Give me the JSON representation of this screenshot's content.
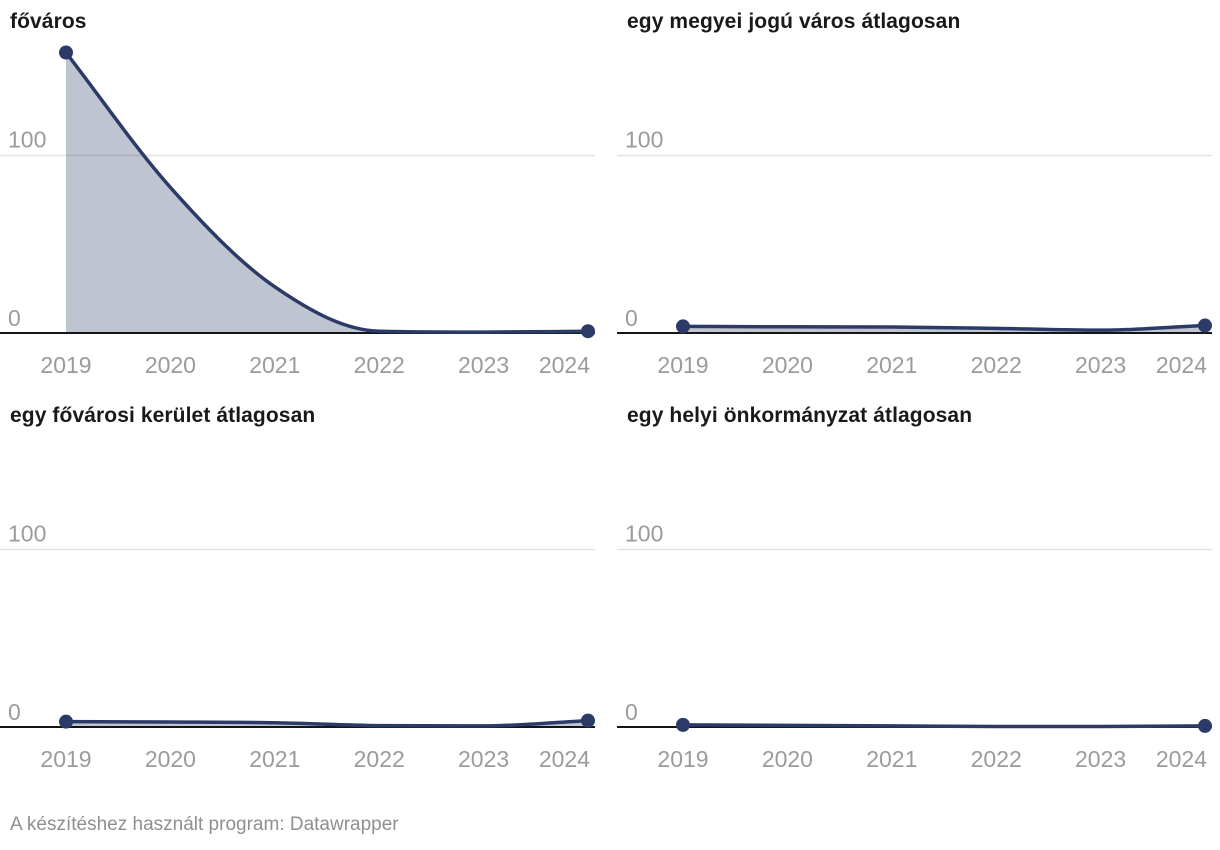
{
  "chart_data": [
    {
      "type": "area",
      "title": "főváros",
      "categories": [
        "2019",
        "2020",
        "2021",
        "2022",
        "2023",
        "2024"
      ],
      "values": [
        158,
        82,
        26,
        1,
        0.5,
        1
      ],
      "xlabel": "",
      "ylabel": "",
      "ylim": [
        0,
        165
      ],
      "yticks": [
        0,
        100
      ],
      "grid": "horizontal-100-only",
      "legend": "none",
      "markers": "first-and-last-point-dots"
    },
    {
      "type": "area",
      "title": "egy megyei jogú város átlagosan",
      "categories": [
        "2019",
        "2020",
        "2021",
        "2022",
        "2023",
        "2024"
      ],
      "values": [
        3.7,
        3.5,
        3.4,
        2.6,
        1.6,
        4.2
      ],
      "xlabel": "",
      "ylabel": "",
      "ylim": [
        0,
        165
      ],
      "yticks": [
        0,
        100
      ],
      "grid": "horizontal-100-only",
      "legend": "none",
      "markers": "first-and-last-point-dots"
    },
    {
      "type": "area",
      "title": "egy fővárosi kerület átlagosan",
      "categories": [
        "2019",
        "2020",
        "2021",
        "2022",
        "2023",
        "2024"
      ],
      "values": [
        3.0,
        2.8,
        2.4,
        0.8,
        0.6,
        3.6
      ],
      "xlabel": "",
      "ylabel": "",
      "ylim": [
        0,
        165
      ],
      "yticks": [
        0,
        100
      ],
      "grid": "horizontal-100-only",
      "legend": "none",
      "markers": "first-and-last-point-dots"
    },
    {
      "type": "area",
      "title": "egy helyi önkormányzat átlagosan",
      "categories": [
        "2019",
        "2020",
        "2021",
        "2022",
        "2023",
        "2024"
      ],
      "values": [
        1.2,
        0.9,
        0.6,
        0.3,
        0.3,
        0.6
      ],
      "xlabel": "",
      "ylabel": "",
      "ylim": [
        0,
        165
      ],
      "yticks": [
        0,
        100
      ],
      "grid": "horizontal-100-only",
      "legend": "none",
      "markers": "first-and-last-point-dots"
    }
  ],
  "yaxis_tick_labels": {
    "top": "100",
    "bottom": "0"
  },
  "footer": {
    "text": "A készítéshez használt program: Datawrapper"
  },
  "colors": {
    "line": "#2b3a66",
    "dot": "#2b3a66",
    "area_fill": "rgba(43,58,102,0.3)",
    "axis": "#151515",
    "gridline": "#e2e2e2",
    "tick_label": "#9b9b9b",
    "title": "#191919",
    "footer_text": "#8f8f8f",
    "background": "#ffffff"
  }
}
